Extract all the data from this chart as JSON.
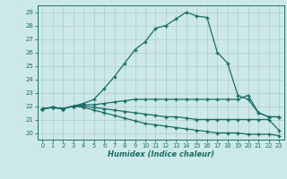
{
  "xlabel": "Humidex (Indice chaleur)",
  "background_color": "#cce8e8",
  "grid_color": "#b0c8c8",
  "line_color": "#1a6e65",
  "xlim": [
    -0.5,
    23.5
  ],
  "ylim": [
    19.5,
    29.5
  ],
  "xticks": [
    0,
    1,
    2,
    3,
    4,
    5,
    6,
    7,
    8,
    9,
    10,
    11,
    12,
    13,
    14,
    15,
    16,
    17,
    18,
    19,
    20,
    21,
    22,
    23
  ],
  "yticks": [
    20,
    21,
    22,
    23,
    24,
    25,
    26,
    27,
    28,
    29
  ],
  "curve_main_x": [
    0,
    1,
    2,
    3,
    4,
    5,
    6,
    7,
    8,
    9,
    10,
    11,
    12,
    13,
    14,
    15,
    16,
    17,
    18,
    19,
    20,
    21,
    22,
    23
  ],
  "curve_main_y": [
    21.8,
    21.9,
    21.8,
    22.0,
    22.2,
    22.5,
    23.3,
    24.2,
    25.2,
    26.2,
    26.8,
    27.8,
    28.0,
    28.5,
    29.0,
    28.7,
    28.6,
    26.0,
    25.2,
    22.8,
    22.5,
    21.5,
    21.2,
    21.2
  ],
  "curve_mid_x": [
    0,
    1,
    2,
    3,
    4,
    5,
    6,
    7,
    8,
    9,
    10,
    11,
    12,
    13,
    14,
    15,
    16,
    17,
    18,
    19,
    20,
    21,
    22,
    23
  ],
  "curve_mid_y": [
    21.8,
    21.9,
    21.8,
    22.0,
    22.1,
    22.1,
    22.2,
    22.3,
    22.4,
    22.5,
    22.5,
    22.5,
    22.5,
    22.5,
    22.5,
    22.5,
    22.5,
    22.5,
    22.5,
    22.5,
    22.8,
    21.5,
    21.2,
    21.2
  ],
  "curve_low1_x": [
    0,
    1,
    2,
    3,
    4,
    5,
    6,
    7,
    8,
    9,
    10,
    11,
    12,
    13,
    14,
    15,
    16,
    17,
    18,
    19,
    20,
    21,
    22,
    23
  ],
  "curve_low1_y": [
    21.8,
    21.9,
    21.8,
    22.0,
    22.0,
    21.9,
    21.8,
    21.7,
    21.6,
    21.5,
    21.4,
    21.3,
    21.2,
    21.2,
    21.1,
    21.0,
    21.0,
    21.0,
    21.0,
    21.0,
    21.0,
    21.0,
    21.0,
    20.2
  ],
  "curve_low2_x": [
    0,
    1,
    2,
    3,
    4,
    5,
    6,
    7,
    8,
    9,
    10,
    11,
    12,
    13,
    14,
    15,
    16,
    17,
    18,
    19,
    20,
    21,
    22,
    23
  ],
  "curve_low2_y": [
    21.8,
    21.9,
    21.8,
    22.0,
    21.9,
    21.7,
    21.5,
    21.3,
    21.1,
    20.9,
    20.7,
    20.6,
    20.5,
    20.4,
    20.3,
    20.2,
    20.1,
    20.0,
    20.0,
    20.0,
    19.9,
    19.9,
    19.9,
    19.8
  ]
}
